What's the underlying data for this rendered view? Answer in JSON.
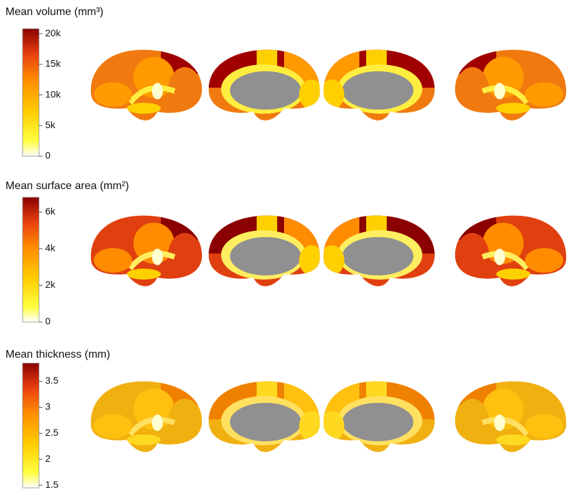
{
  "panels": [
    {
      "title": "Mean volume (mm³)",
      "range": [
        0,
        20800
      ],
      "ticks": [
        {
          "value": 20000,
          "label": "20k"
        },
        {
          "value": 15000,
          "label": "15k"
        },
        {
          "value": 10000,
          "label": "10k"
        },
        {
          "value": 5000,
          "label": "5k"
        },
        0
      ]
    },
    {
      "title": "Mean surface area (mm²)",
      "range": [
        0,
        6800
      ],
      "ticks": [
        {
          "value": 6000,
          "label": "6k"
        },
        {
          "value": 4000,
          "label": "4k"
        },
        {
          "value": 2000,
          "label": "2k"
        },
        0
      ]
    },
    {
      "title": "Mean thickness (mm)",
      "range": [
        1.45,
        3.85
      ],
      "ticks": [
        3.5,
        3,
        2.5,
        2,
        1.5
      ]
    }
  ]
}
